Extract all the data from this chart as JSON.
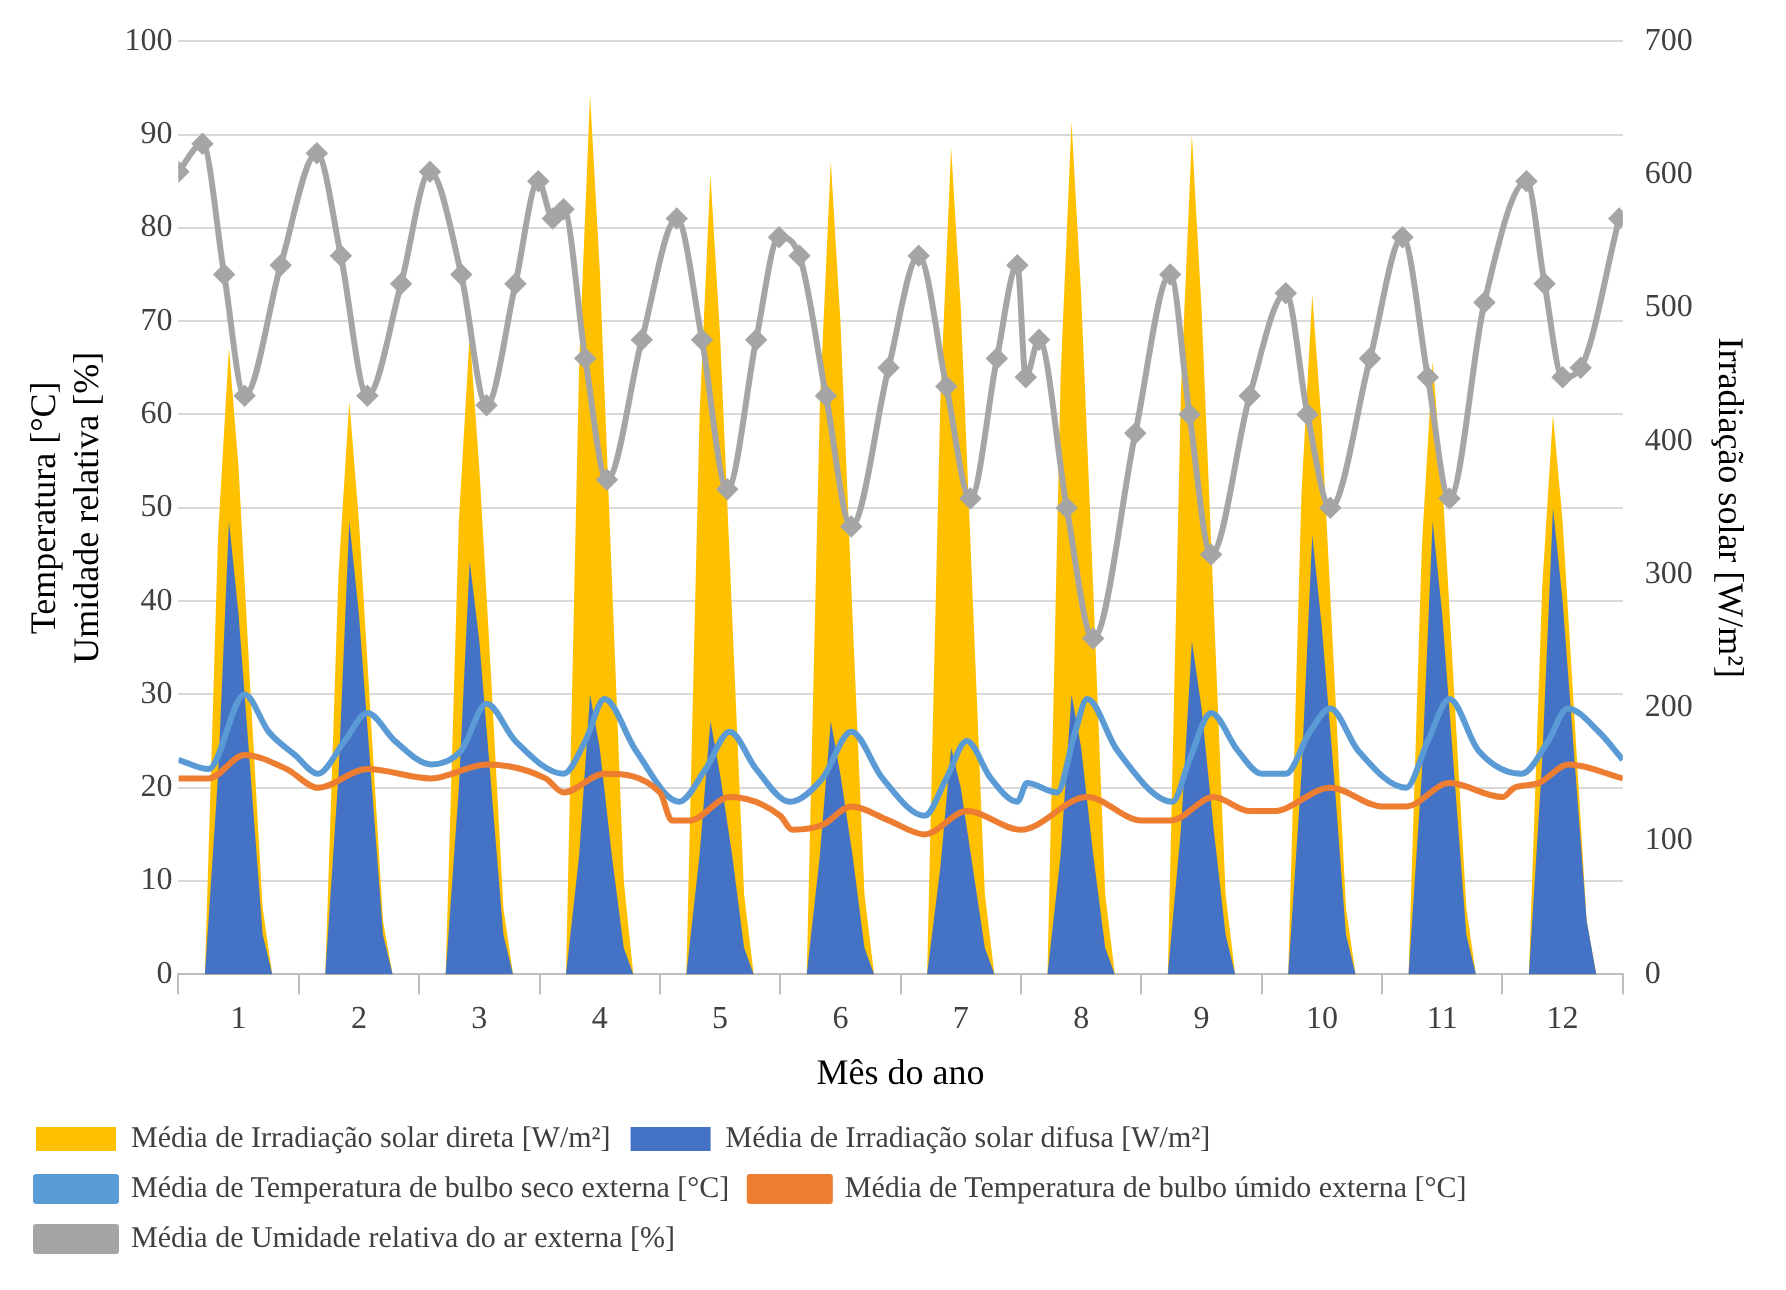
{
  "chart_data": {
    "type": "line",
    "xlabel": "Mês do ano",
    "ylabel": "Temperatura [°C]\nUmidade relativa [%]",
    "y2label": "Irradiação solar [W/m²]",
    "xlim": [
      0.5,
      12.5
    ],
    "xticks": [
      {
        "value": 0.5,
        "label": null
      },
      1,
      {
        "value": 1.5,
        "label": null
      },
      2,
      {
        "value": 2.5,
        "label": null
      },
      3,
      {
        "value": 3.5,
        "label": null
      },
      4,
      {
        "value": 4.5,
        "label": null
      },
      5,
      {
        "value": 5.5,
        "label": null
      },
      6,
      {
        "value": 6.5,
        "label": null
      },
      7,
      {
        "value": 7.5,
        "label": null
      },
      8,
      {
        "value": 8.5,
        "label": null
      },
      9,
      {
        "value": 9.5,
        "label": null
      },
      10,
      {
        "value": 10.5,
        "label": null
      },
      11,
      {
        "value": 11.5,
        "label": null
      },
      12,
      {
        "value": 12.5,
        "label": null
      }
    ],
    "ylim": [
      0,
      100
    ],
    "yticks": [
      0,
      10,
      20,
      30,
      40,
      50,
      60,
      70,
      80,
      90,
      100
    ],
    "y2lim": [
      0,
      700
    ],
    "y2ticks": [
      0,
      100,
      200,
      300,
      400,
      500,
      600,
      700
    ],
    "grid": "y",
    "legend": "bottom",
    "marker": "none",
    "series": [
      {
        "name": "Média de Irradiação solar direta [W/m²]",
        "type": "area",
        "axis": "y2",
        "color": "#ffc000",
        "x": [
          0.5,
          0.72,
          0.83,
          0.92,
          1,
          1.1,
          1.2,
          1.28,
          1.72,
          1.83,
          1.92,
          2,
          2.1,
          2.2,
          2.28,
          2.72,
          2.83,
          2.92,
          3,
          3.1,
          3.2,
          3.28,
          3.72,
          3.83,
          3.92,
          4,
          4.1,
          4.2,
          4.28,
          4.72,
          4.83,
          4.92,
          5,
          5.1,
          5.2,
          5.28,
          5.72,
          5.83,
          5.92,
          6,
          6.1,
          6.2,
          6.28,
          6.72,
          6.83,
          6.92,
          7,
          7.1,
          7.2,
          7.28,
          7.72,
          7.83,
          7.92,
          8,
          8.1,
          8.2,
          8.28,
          8.72,
          8.83,
          8.92,
          9,
          9.1,
          9.2,
          9.28,
          9.72,
          9.83,
          9.92,
          10,
          10.1,
          10.2,
          10.28,
          10.72,
          10.83,
          10.92,
          11,
          11.1,
          11.2,
          11.28,
          11.72,
          11.83,
          11.92,
          12,
          12.1,
          12.2,
          12.28,
          12.5
        ],
        "values": [
          0,
          0,
          330,
          470,
          380,
          210,
          50,
          0,
          0,
          300,
          430,
          340,
          190,
          40,
          0,
          0,
          340,
          480,
          380,
          220,
          50,
          0,
          0,
          460,
          660,
          530,
          300,
          70,
          0,
          0,
          420,
          600,
          480,
          270,
          60,
          0,
          0,
          430,
          610,
          490,
          270,
          60,
          0,
          0,
          430,
          620,
          500,
          280,
          60,
          0,
          0,
          450,
          640,
          510,
          290,
          60,
          0,
          0,
          440,
          630,
          500,
          280,
          60,
          0,
          0,
          360,
          510,
          410,
          230,
          50,
          0,
          0,
          320,
          460,
          370,
          210,
          50,
          0,
          0,
          290,
          420,
          340,
          190,
          40,
          0,
          0
        ]
      },
      {
        "name": "Média de Irradiação solar difusa [W/m²]",
        "type": "area",
        "axis": "y2",
        "color": "#4472c4",
        "x": [
          0.5,
          0.72,
          0.83,
          0.92,
          1,
          1.1,
          1.2,
          1.28,
          1.72,
          1.83,
          1.92,
          2,
          2.1,
          2.2,
          2.28,
          2.72,
          2.83,
          2.92,
          3,
          3.1,
          3.2,
          3.28,
          3.72,
          3.83,
          3.92,
          4,
          4.1,
          4.2,
          4.28,
          4.72,
          4.83,
          4.92,
          5,
          5.1,
          5.2,
          5.28,
          5.72,
          5.83,
          5.92,
          6,
          6.1,
          6.2,
          6.28,
          6.72,
          6.83,
          6.92,
          7,
          7.1,
          7.2,
          7.28,
          7.72,
          7.83,
          7.92,
          8,
          8.1,
          8.2,
          8.28,
          8.72,
          8.83,
          8.92,
          9,
          9.1,
          9.2,
          9.28,
          9.72,
          9.83,
          9.92,
          10,
          10.1,
          10.2,
          10.28,
          10.72,
          10.83,
          10.92,
          11,
          11.1,
          11.2,
          11.28,
          11.72,
          11.83,
          11.92,
          12,
          12.1,
          12.2,
          12.28,
          12.5
        ],
        "values": [
          0,
          0,
          150,
          340,
          270,
          150,
          30,
          0,
          0,
          150,
          340,
          270,
          150,
          30,
          0,
          0,
          140,
          310,
          250,
          140,
          30,
          0,
          0,
          90,
          210,
          170,
          90,
          20,
          0,
          0,
          90,
          190,
          150,
          90,
          20,
          0,
          0,
          90,
          190,
          150,
          90,
          20,
          0,
          0,
          80,
          170,
          140,
          80,
          20,
          0,
          0,
          90,
          210,
          170,
          90,
          20,
          0,
          0,
          110,
          250,
          200,
          110,
          30,
          0,
          0,
          150,
          330,
          260,
          150,
          30,
          0,
          0,
          150,
          340,
          270,
          150,
          30,
          0,
          0,
          160,
          350,
          280,
          160,
          40,
          0,
          0
        ]
      },
      {
        "name": "Média de Temperatura de bulbo seco externa [°C]",
        "color": "#5b9bd5",
        "x": [
          0.5,
          0.75,
          1.05,
          1.25,
          1.47,
          1.66,
          1.88,
          2.07,
          2.3,
          2.6,
          2.85,
          3.06,
          3.3,
          3.7,
          3.88,
          4.04,
          4.3,
          4.66,
          4.88,
          5.08,
          5.3,
          5.58,
          5.85,
          6.09,
          6.35,
          6.7,
          6.88,
          7.05,
          7.25,
          7.47,
          7.55,
          7.8,
          7.95,
          8.05,
          8.3,
          8.76,
          8.9,
          9.08,
          9.3,
          9.5,
          9.7,
          9.9,
          10.07,
          10.3,
          10.7,
          10.88,
          11.06,
          11.3,
          11.66,
          11.88,
          12.04,
          12.3,
          12.5
        ],
        "values": [
          23,
          22,
          30,
          26,
          23.5,
          21.5,
          25,
          28,
          25,
          22.5,
          24,
          29,
          25,
          21.5,
          25,
          29.5,
          24,
          18.5,
          22,
          26,
          22,
          18.5,
          21,
          26,
          21,
          17,
          21,
          25,
          21,
          18.5,
          20.5,
          19.5,
          26,
          29.5,
          24,
          18.5,
          23,
          28,
          24,
          21.5,
          21.5,
          26,
          28.5,
          24,
          20,
          25,
          29.5,
          24,
          21.5,
          25,
          28.5,
          26,
          23
        ]
      },
      {
        "name": "Média de Temperatura de bulbo úmido externa [°C]",
        "color": "#ed7d31",
        "x": [
          0.5,
          0.75,
          1.05,
          1.4,
          1.66,
          2.07,
          2.6,
          3.06,
          3.55,
          3.7,
          4.04,
          4.5,
          4.6,
          4.75,
          5.08,
          5.5,
          5.6,
          5.85,
          6.09,
          6.4,
          6.7,
          7.05,
          7.5,
          8.05,
          8.5,
          8.75,
          9.1,
          9.4,
          9.6,
          10.07,
          10.5,
          10.7,
          11.06,
          11.5,
          11.6,
          11.8,
          12.05,
          12.5
        ],
        "values": [
          21,
          21,
          23.5,
          22,
          20,
          22,
          21,
          22.5,
          21,
          19.5,
          21.5,
          19.5,
          16.5,
          16.5,
          19,
          17,
          15.5,
          16,
          18,
          16.5,
          15,
          17.5,
          15.5,
          19,
          16.5,
          16.5,
          19,
          17.5,
          17.5,
          20,
          18,
          18,
          20.5,
          19,
          20,
          20.5,
          22.5,
          21
        ]
      },
      {
        "name": "Média de Umidade relativa do ar externa [%]",
        "marker": "diamond",
        "color": "#a5a5a5",
        "x": [
          0.5,
          0.7,
          0.88,
          1.05,
          1.35,
          1.65,
          1.85,
          2.07,
          2.35,
          2.59,
          2.85,
          3.06,
          3.3,
          3.49,
          3.61,
          3.7,
          3.88,
          4.06,
          4.35,
          4.64,
          4.85,
          5.06,
          5.3,
          5.49,
          5.66,
          5.88,
          6.09,
          6.4,
          6.65,
          6.88,
          7.08,
          7.3,
          7.47,
          7.54,
          7.65,
          7.88,
          8.1,
          8.45,
          8.74,
          8.9,
          9.08,
          9.4,
          9.7,
          9.88,
          10.07,
          10.4,
          10.67,
          10.88,
          11.06,
          11.35,
          11.7,
          11.85,
          12,
          12.15,
          12.47
        ],
        "values": [
          86,
          89,
          75,
          62,
          76,
          88,
          77,
          62,
          74,
          86,
          75,
          61,
          74,
          85,
          81,
          82,
          66,
          53,
          68,
          81,
          68,
          52,
          68,
          79,
          77,
          62,
          48,
          65,
          77,
          63,
          51,
          66,
          76,
          64,
          68,
          50,
          36,
          58,
          75,
          60,
          45,
          62,
          73,
          60,
          50,
          66,
          79,
          64,
          51,
          72,
          85,
          74,
          64,
          65,
          81
        ]
      }
    ]
  }
}
